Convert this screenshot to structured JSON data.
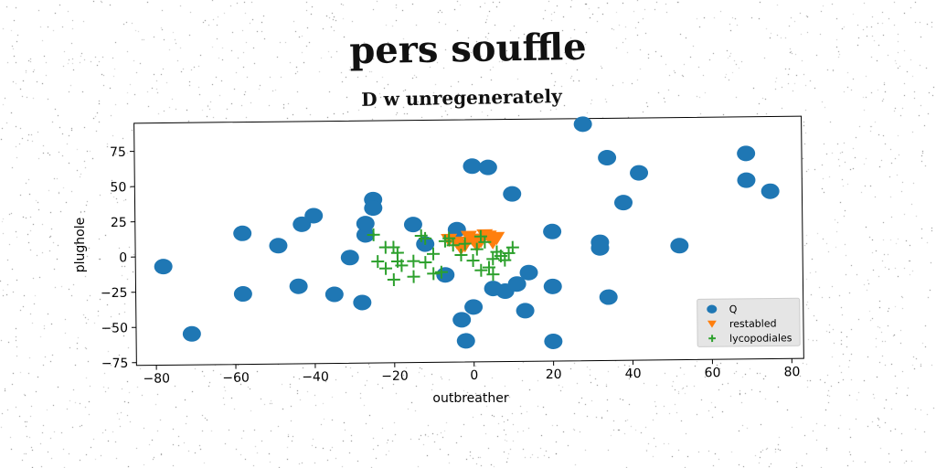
{
  "suptitle": "pers souffle",
  "chart_data": {
    "type": "scatter",
    "title": "D w unregenerately",
    "xlabel": "outbreather",
    "ylabel": "plughole",
    "xlim": [
      -85,
      83
    ],
    "ylim": [
      -77,
      95
    ],
    "xticks": [
      -80,
      -60,
      -40,
      -20,
      0,
      20,
      40,
      60,
      80
    ],
    "yticks": [
      -75,
      -50,
      -25,
      0,
      25,
      50,
      75
    ],
    "grid": false,
    "legend_position": "lower-right",
    "series": [
      {
        "name": "Q",
        "marker": "circle",
        "color": "#1f77b4",
        "points": [
          [
            -78,
            -7
          ],
          [
            -71,
            -55
          ],
          [
            -58,
            16
          ],
          [
            -58,
            -27
          ],
          [
            -49,
            7
          ],
          [
            -44,
            -22
          ],
          [
            -43,
            22
          ],
          [
            -40,
            28
          ],
          [
            -35,
            -28
          ],
          [
            -31,
            -2
          ],
          [
            -28,
            -34
          ],
          [
            -27,
            14
          ],
          [
            -27,
            22
          ],
          [
            -25,
            39
          ],
          [
            -25,
            33
          ],
          [
            -15,
            21
          ],
          [
            -12,
            7
          ],
          [
            -7,
            -15
          ],
          [
            -4,
            17
          ],
          [
            -3,
            -47
          ],
          [
            -2,
            -62
          ],
          [
            0,
            -38
          ],
          [
            0,
            62
          ],
          [
            4,
            61
          ],
          [
            5,
            -25
          ],
          [
            8,
            -27
          ],
          [
            10,
            42
          ],
          [
            11,
            -22
          ],
          [
            13,
            -41
          ],
          [
            14,
            -14
          ],
          [
            20,
            15
          ],
          [
            20,
            -24
          ],
          [
            20,
            -63
          ],
          [
            28,
            91
          ],
          [
            32,
            7
          ],
          [
            32,
            3
          ],
          [
            34,
            67
          ],
          [
            34,
            -32
          ],
          [
            38,
            35
          ],
          [
            42,
            56
          ],
          [
            52,
            4
          ],
          [
            69,
            69
          ],
          [
            69,
            50
          ],
          [
            75,
            42
          ]
        ]
      },
      {
        "name": "restabled",
        "marker": "triangle-down",
        "color": "#ff7f0e",
        "points": [
          [
            -6,
            10
          ],
          [
            -4,
            8
          ],
          [
            -2,
            6
          ],
          [
            0,
            10
          ],
          [
            2,
            9
          ],
          [
            4,
            12
          ],
          [
            6,
            11
          ],
          [
            1,
            6
          ],
          [
            -3,
            4
          ],
          [
            3,
            13
          ],
          [
            -1,
            12
          ],
          [
            5,
            8
          ]
        ]
      },
      {
        "name": "lycopodiales",
        "marker": "plus",
        "color": "#2ca02c",
        "points": [
          [
            -25,
            14
          ],
          [
            -22,
            5
          ],
          [
            -20,
            5
          ],
          [
            -19,
            1
          ],
          [
            -19,
            -5
          ],
          [
            -18,
            -8
          ],
          [
            -15,
            -16
          ],
          [
            -13,
            13
          ],
          [
            -12,
            -6
          ],
          [
            -12,
            11
          ],
          [
            -10,
            -14
          ],
          [
            -8,
            -13
          ],
          [
            -7,
            9
          ],
          [
            -6,
            11
          ],
          [
            -5,
            6
          ],
          [
            -3,
            -1
          ],
          [
            -2,
            7
          ],
          [
            0,
            -5
          ],
          [
            1,
            3
          ],
          [
            2,
            12
          ],
          [
            3,
            8
          ],
          [
            4,
            -10
          ],
          [
            5,
            -4
          ],
          [
            6,
            1
          ],
          [
            7,
            -2
          ],
          [
            8,
            -5
          ],
          [
            9,
            0
          ],
          [
            10,
            4
          ],
          [
            -24,
            -5
          ],
          [
            -22,
            -10
          ],
          [
            -15,
            -5
          ],
          [
            -10,
            0
          ],
          [
            -20,
            -18
          ],
          [
            2,
            -12
          ],
          [
            5,
            -15
          ]
        ]
      }
    ]
  }
}
